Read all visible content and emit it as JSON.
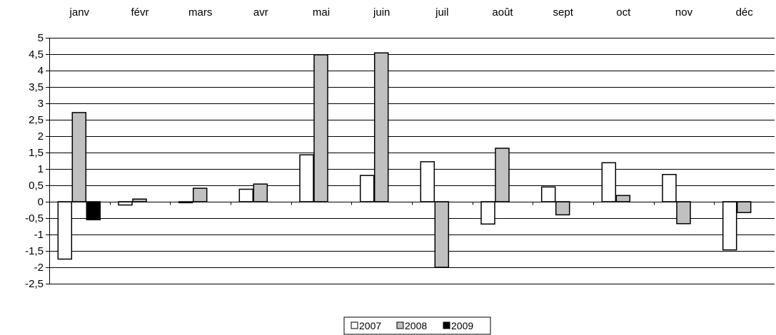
{
  "colors": {
    "2007": "#ffffff",
    "2008": "#c0c0c0",
    "2009": "#000000",
    "bar_stroke": "#000000",
    "gridline": "#000000"
  },
  "chart_data": {
    "type": "bar",
    "categories": [
      "janv",
      "févr",
      "mars",
      "avr",
      "mai",
      "juin",
      "juil",
      "août",
      "sept",
      "oct",
      "nov",
      "déc"
    ],
    "category_axis_position": "top",
    "series": [
      {
        "name": "2007",
        "values": [
          -1.75,
          -0.1,
          -0.03,
          0.38,
          1.43,
          0.8,
          1.22,
          -0.68,
          0.45,
          1.19,
          0.83,
          -1.47
        ]
      },
      {
        "name": "2008",
        "values": [
          2.72,
          0.08,
          0.41,
          0.54,
          4.48,
          4.54,
          -2.0,
          1.63,
          -0.4,
          0.19,
          -0.67,
          -0.33
        ]
      },
      {
        "name": "2009",
        "values": [
          -0.55,
          null,
          null,
          null,
          null,
          null,
          null,
          null,
          null,
          null,
          null,
          null
        ]
      }
    ],
    "yticks": [
      "5",
      "4,5",
      "4",
      "3,5",
      "3",
      "2,5",
      "2",
      "1,5",
      "1",
      "0,5",
      "0",
      "-0,5",
      "-1",
      "-1,5",
      "-2",
      "-2,5"
    ],
    "ylim": [
      -2.5,
      5
    ],
    "ystep": 0.5,
    "grid": true,
    "legend": {
      "placement": "bottom-center",
      "entries": [
        "2007",
        "2008",
        "2009"
      ]
    }
  }
}
